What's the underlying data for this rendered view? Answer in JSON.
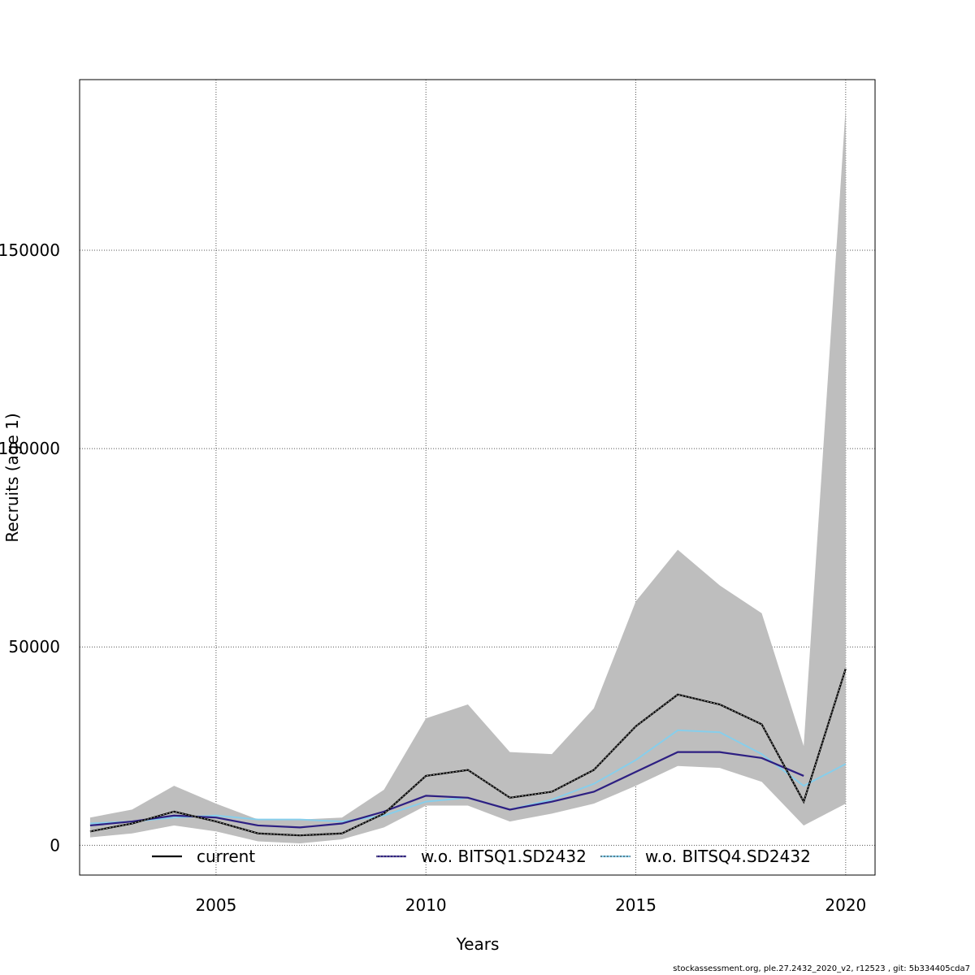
{
  "chart_data": {
    "type": "line",
    "xlabel": "Years",
    "ylabel": "Recruits (age 1)",
    "xlim": [
      2001.75,
      2020.7
    ],
    "ylim": [
      -7500,
      193000
    ],
    "x_ticks": [
      2005,
      2010,
      2015,
      2020
    ],
    "y_ticks": [
      0,
      50000,
      100000,
      150000
    ],
    "y_tick_labels": [
      "0",
      "50000",
      "100000",
      "150000"
    ],
    "grid": true,
    "legend_position": "bottom",
    "x": [
      2002,
      2003,
      2004,
      2005,
      2006,
      2007,
      2008,
      2009,
      2010,
      2011,
      2012,
      2013,
      2014,
      2015,
      2016,
      2017,
      2018,
      2019,
      2020
    ],
    "confidence_band": {
      "color": "#bebebe",
      "lower": [
        2000,
        3000,
        5000,
        3500,
        1000,
        500,
        1500,
        4500,
        10000,
        10000,
        6000,
        8000,
        10500,
        15000,
        20000,
        19500,
        16000,
        5000,
        10500
      ],
      "upper": [
        7000,
        9000,
        15000,
        10500,
        6500,
        6500,
        7000,
        14000,
        32000,
        35500,
        23500,
        23000,
        34500,
        61500,
        74500,
        65500,
        58500,
        25000,
        186000
      ]
    },
    "series": [
      {
        "name": "current",
        "color": "#000000",
        "values": [
          3500,
          5500,
          8500,
          6000,
          3000,
          2500,
          3000,
          8000,
          17500,
          19000,
          12000,
          13500,
          19000,
          30000,
          38000,
          35500,
          30500,
          11000,
          44500
        ]
      },
      {
        "name": "w.o. BITSQ1.SD2432",
        "color": "#2d1f82",
        "values": [
          5000,
          6000,
          7500,
          7000,
          5000,
          4500,
          5500,
          8500,
          12500,
          12000,
          9000,
          11000,
          13500,
          18500,
          23500,
          23500,
          22000,
          17500,
          null
        ]
      },
      {
        "name": "w.o. BITSQ4.SD2432",
        "color": "#87ceeb",
        "values": [
          5500,
          6000,
          7000,
          7500,
          6500,
          6500,
          6000,
          7500,
          11000,
          12000,
          9000,
          11500,
          15500,
          21500,
          29000,
          28500,
          23000,
          15000,
          20500
        ]
      }
    ]
  },
  "footer_text": "stockassessment.org, ple.27.2432_2020_v2, r12523 , git: 5b334405cda7"
}
